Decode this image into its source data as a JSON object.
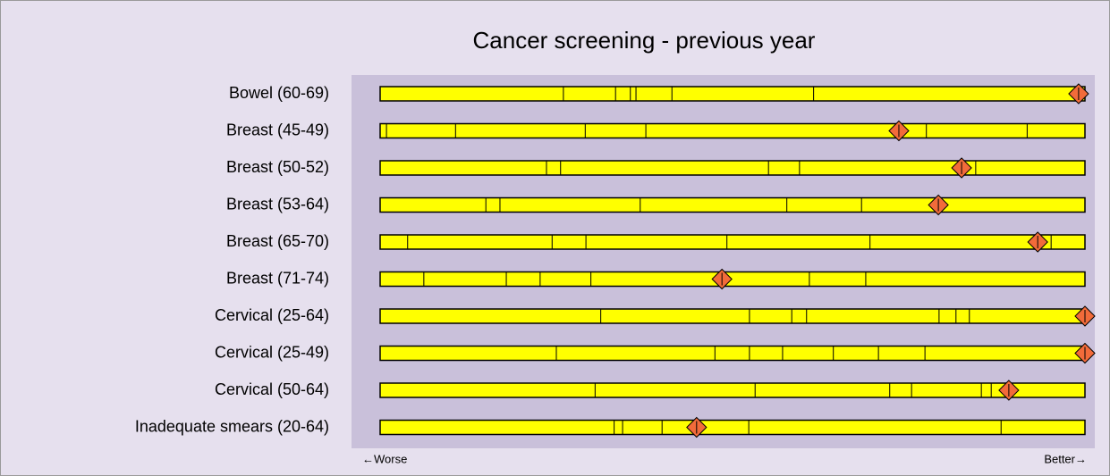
{
  "chart_data": {
    "type": "spine",
    "title": "Cancer screening  - previous year",
    "categories": [
      "Bowel (60-69)",
      "Breast (45-49)",
      "Breast (50-52)",
      "Breast (53-64)",
      "Breast (65-70)",
      "Breast (71-74)",
      "Cervical (25-64)",
      "Cervical (25-49)",
      "Cervical (50-64)",
      "Inadequate smears (20-64)"
    ],
    "values": [
      99.1,
      73.6,
      82.5,
      79.2,
      93.3,
      48.5,
      100,
      100,
      89.2,
      44.9
    ],
    "dividers": [
      [
        26.0,
        33.4,
        35.5,
        36.3,
        41.4,
        61.5
      ],
      [
        0.9,
        10.7,
        29.1,
        37.7,
        77.5,
        91.8
      ],
      [
        23.6,
        25.6,
        55.1,
        59.5,
        84.5
      ],
      [
        15.0,
        17.0,
        36.9,
        57.7,
        68.3
      ],
      [
        3.9,
        24.4,
        29.2,
        49.2,
        69.5,
        95.2
      ],
      [
        6.2,
        17.9,
        22.7,
        29.9,
        60.9,
        68.9
      ],
      [
        31.3,
        52.4,
        58.4,
        60.5,
        79.3,
        81.7,
        83.6
      ],
      [
        25.0,
        47.5,
        52.4,
        57.1,
        64.3,
        70.7,
        77.3
      ],
      [
        30.5,
        53.2,
        72.3,
        75.4,
        85.3,
        86.7
      ],
      [
        33.2,
        34.4,
        40.0,
        52.3,
        88.1
      ]
    ],
    "xlim": [
      0,
      100
    ],
    "x_start_label": "←Worse",
    "x_end_label": "Better→",
    "bar_color": "#ffff00",
    "marker_color": "#f26b3a"
  }
}
